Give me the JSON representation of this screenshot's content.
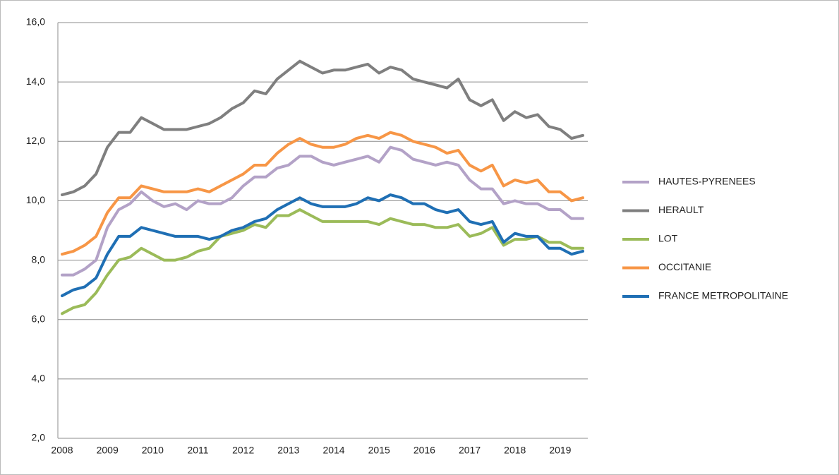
{
  "chart_data": {
    "type": "line",
    "categories": [
      "2008",
      null,
      null,
      null,
      "2009",
      null,
      null,
      null,
      "2010",
      null,
      null,
      null,
      "2011",
      null,
      null,
      null,
      "2012",
      null,
      null,
      null,
      "2013",
      null,
      null,
      null,
      "2014",
      null,
      null,
      null,
      "2015",
      null,
      null,
      null,
      "2016",
      null,
      null,
      null,
      "2017",
      null,
      null,
      null,
      "2018",
      null,
      null,
      null,
      "2019",
      null,
      null
    ],
    "ylim": [
      2,
      16
    ],
    "yticks": [
      {
        "value": 2,
        "label": "2,0"
      },
      {
        "value": 4,
        "label": "4,0"
      },
      {
        "value": 6,
        "label": "6,0"
      },
      {
        "value": 8,
        "label": "8,0"
      },
      {
        "value": 10,
        "label": "10,0"
      },
      {
        "value": 12,
        "label": "12,0"
      },
      {
        "value": 14,
        "label": "14,0"
      },
      {
        "value": 16,
        "label": "16,0"
      }
    ],
    "grid": true,
    "legend": "right",
    "series": [
      {
        "name": "HAUTES-PYRENEES",
        "color": "#b3a2c7",
        "values": [
          7.5,
          7.5,
          7.7,
          8.0,
          9.1,
          9.7,
          9.9,
          10.3,
          10.0,
          9.8,
          9.9,
          9.7,
          10.0,
          9.9,
          9.9,
          10.1,
          10.5,
          10.8,
          10.8,
          11.1,
          11.2,
          11.5,
          11.5,
          11.3,
          11.2,
          11.3,
          11.4,
          11.5,
          11.3,
          11.8,
          11.7,
          11.4,
          11.3,
          11.2,
          11.3,
          11.2,
          10.7,
          10.4,
          10.4,
          9.9,
          10.0,
          9.9,
          9.9,
          9.7,
          9.7,
          9.4,
          9.4
        ]
      },
      {
        "name": "HERAULT",
        "color": "#7f7f7f",
        "values": [
          10.2,
          10.3,
          10.5,
          10.9,
          11.8,
          12.3,
          12.3,
          12.8,
          12.6,
          12.4,
          12.4,
          12.4,
          12.5,
          12.6,
          12.8,
          13.1,
          13.3,
          13.7,
          13.6,
          14.1,
          14.4,
          14.7,
          14.5,
          14.3,
          14.4,
          14.4,
          14.5,
          14.6,
          14.3,
          14.5,
          14.4,
          14.1,
          14.0,
          13.9,
          13.8,
          14.1,
          13.4,
          13.2,
          13.4,
          12.7,
          13.0,
          12.8,
          12.9,
          12.5,
          12.4,
          12.1,
          12.2
        ]
      },
      {
        "name": "LOT",
        "color": "#9bbb59",
        "values": [
          6.2,
          6.4,
          6.5,
          6.9,
          7.5,
          8.0,
          8.1,
          8.4,
          8.2,
          8.0,
          8.0,
          8.1,
          8.3,
          8.4,
          8.8,
          8.9,
          9.0,
          9.2,
          9.1,
          9.5,
          9.5,
          9.7,
          9.5,
          9.3,
          9.3,
          9.3,
          9.3,
          9.3,
          9.2,
          9.4,
          9.3,
          9.2,
          9.2,
          9.1,
          9.1,
          9.2,
          8.8,
          8.9,
          9.1,
          8.5,
          8.7,
          8.7,
          8.8,
          8.6,
          8.6,
          8.4,
          8.4
        ]
      },
      {
        "name": "OCCITANIE",
        "color": "#f79646",
        "values": [
          8.2,
          8.3,
          8.5,
          8.8,
          9.6,
          10.1,
          10.1,
          10.5,
          10.4,
          10.3,
          10.3,
          10.3,
          10.4,
          10.3,
          10.5,
          10.7,
          10.9,
          11.2,
          11.2,
          11.6,
          11.9,
          12.1,
          11.9,
          11.8,
          11.8,
          11.9,
          12.1,
          12.2,
          12.1,
          12.3,
          12.2,
          12.0,
          11.9,
          11.8,
          11.6,
          11.7,
          11.2,
          11.0,
          11.2,
          10.5,
          10.7,
          10.6,
          10.7,
          10.3,
          10.3,
          10.0,
          10.1
        ]
      },
      {
        "name": "FRANCE METROPOLITAINE",
        "color": "#1f6fb4",
        "values": [
          6.8,
          7.0,
          7.1,
          7.4,
          8.2,
          8.8,
          8.8,
          9.1,
          9.0,
          8.9,
          8.8,
          8.8,
          8.8,
          8.7,
          8.8,
          9.0,
          9.1,
          9.3,
          9.4,
          9.7,
          9.9,
          10.1,
          9.9,
          9.8,
          9.8,
          9.8,
          9.9,
          10.1,
          10.0,
          10.2,
          10.1,
          9.9,
          9.9,
          9.7,
          9.6,
          9.7,
          9.3,
          9.2,
          9.3,
          8.6,
          8.9,
          8.8,
          8.8,
          8.4,
          8.4,
          8.2,
          8.3
        ]
      }
    ]
  }
}
